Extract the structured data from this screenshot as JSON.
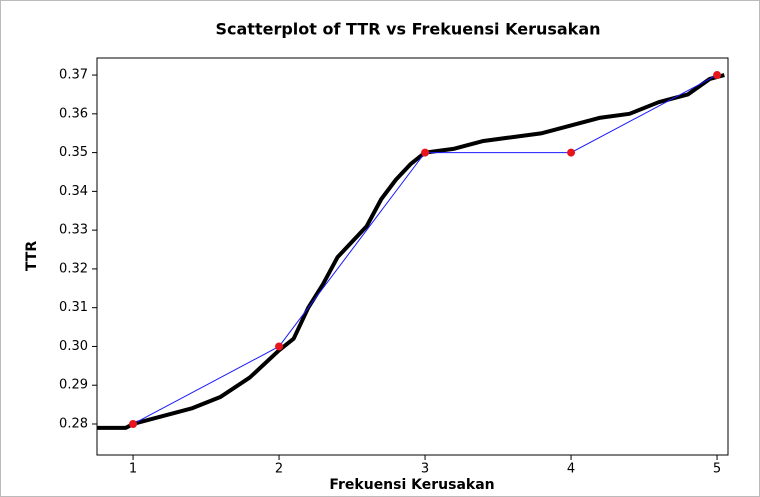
{
  "chart_data": {
    "type": "scatter",
    "title": "Scatterplot of TTR vs Frekuensi Kerusakan",
    "xlabel": "Frekuensi Kerusakan",
    "ylabel": "TTR",
    "x": [
      1,
      2,
      3,
      4,
      5
    ],
    "values": [
      0.28,
      0.3,
      0.35,
      0.35,
      0.37
    ],
    "color": "#e8141c",
    "line_color": "#1a1aff",
    "curve": {
      "color": "#000000",
      "x": [
        0.75,
        0.95,
        1,
        1.2,
        1.4,
        1.6,
        1.8,
        2,
        2.1,
        2.2,
        2.3,
        2.4,
        2.5,
        2.6,
        2.7,
        2.8,
        2.9,
        3,
        3.2,
        3.4,
        3.6,
        3.8,
        4,
        4.2,
        4.4,
        4.6,
        4.8,
        4.95,
        5.05
      ],
      "values": [
        0.279,
        0.279,
        0.28,
        0.282,
        0.284,
        0.287,
        0.292,
        0.299,
        0.302,
        0.31,
        0.316,
        0.323,
        0.327,
        0.331,
        0.338,
        0.343,
        0.347,
        0.35,
        0.351,
        0.353,
        0.354,
        0.355,
        0.357,
        0.359,
        0.36,
        0.363,
        0.365,
        0.369,
        0.37
      ]
    },
    "xlim": [
      0.753,
      5.075
    ],
    "ylim": [
      0.272,
      0.3744
    ],
    "xticks": [
      1,
      2,
      3,
      4,
      5
    ],
    "yticks": [
      0.28,
      0.29,
      {
        "value": 0.3,
        "label": "0.30"
      },
      0.31,
      0.32,
      0.33,
      0.34,
      0.35,
      0.36,
      0.37
    ]
  }
}
